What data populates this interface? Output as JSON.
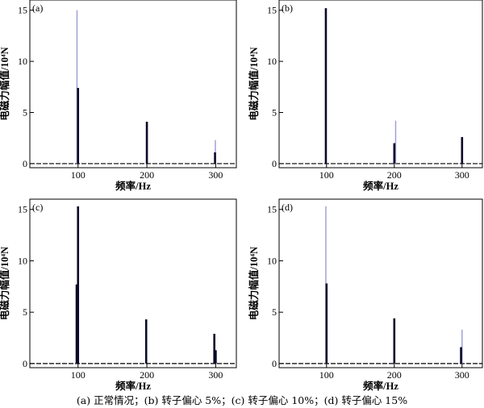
{
  "caption": "(a)  正常情况；(b)  转子偏心 5%；(c)  转子偏心 10%；(d)  转子偏心 15%",
  "chart_data": [
    {
      "type": "bar",
      "panel_label": "(a)",
      "xlabel": "频率/Hz",
      "ylabel": "电磁力幅值/10⁴N",
      "xlim": [
        30,
        330
      ],
      "ylim": [
        -0.4,
        16
      ],
      "xticks": [
        100,
        200,
        300
      ],
      "yticks": [
        0,
        5,
        10,
        15
      ],
      "series": [
        {
          "color": "#0a0a2a",
          "x": [
            100,
            200,
            299
          ],
          "values": [
            7.4,
            4.1,
            1.1
          ]
        },
        {
          "color": "#9b9bd6",
          "x": [
            98.5,
            299.5
          ],
          "values": [
            15,
            2.3
          ]
        }
      ]
    },
    {
      "type": "bar",
      "panel_label": "(b)",
      "xlabel": "频率/Hz",
      "ylabel": "电磁力幅值/10⁴N",
      "xlim": [
        30,
        330
      ],
      "ylim": [
        -0.4,
        16
      ],
      "xticks": [
        100,
        200,
        300
      ],
      "yticks": [
        0,
        5,
        10,
        15
      ],
      "series": [
        {
          "color": "#0a0a2a",
          "x": [
            99,
            200,
            300
          ],
          "values": [
            15.2,
            2.0,
            2.6
          ]
        },
        {
          "color": "#9b9bd6",
          "x": [
            202
          ],
          "values": [
            4.2
          ]
        }
      ]
    },
    {
      "type": "bar",
      "panel_label": "(c)",
      "xlabel": "频率/Hz",
      "ylabel": "电磁力幅值/10⁴N",
      "xlim": [
        30,
        330
      ],
      "ylim": [
        -0.4,
        16
      ],
      "xticks": [
        100,
        200,
        300
      ],
      "yticks": [
        0,
        5,
        10,
        15
      ],
      "series": [
        {
          "color": "#0a0a2a",
          "x": [
            98,
            100,
            199,
            298,
            300
          ],
          "values": [
            7.7,
            15.3,
            4.3,
            2.9,
            1.3
          ]
        }
      ]
    },
    {
      "type": "bar",
      "panel_label": "(d)",
      "xlabel": "频率/Hz",
      "ylabel": "电磁力幅值/10⁴N",
      "xlim": [
        30,
        330
      ],
      "ylim": [
        -0.4,
        16
      ],
      "xticks": [
        100,
        200,
        300
      ],
      "yticks": [
        0,
        5,
        10,
        15
      ],
      "series": [
        {
          "color": "#0a0a2a",
          "x": [
            100,
            200,
            298.5
          ],
          "values": [
            7.8,
            4.4,
            1.6
          ]
        },
        {
          "color": "#9b9bd6",
          "x": [
            99,
            300
          ],
          "values": [
            15.3,
            3.3
          ]
        }
      ]
    }
  ]
}
